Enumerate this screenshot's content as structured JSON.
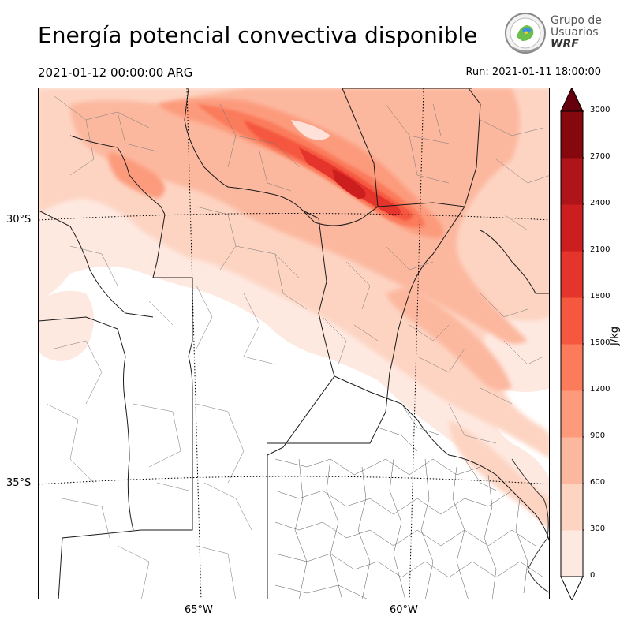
{
  "header": {
    "title": "Energía potencial convectiva disponible",
    "valid_time": "2021-01-12 00:00:00 ARG",
    "run_time": "Run: 2021-01-11 18:00:00"
  },
  "logo": {
    "line1": "Grupo de",
    "line2": "Usuarios",
    "line3": "WRF"
  },
  "map": {
    "lat_labels": [
      "30°S",
      "35°S"
    ],
    "lon_labels": [
      "65°W",
      "60°W"
    ]
  },
  "colorbar": {
    "unit_label": "J/kg",
    "ticks": [
      "0",
      "300",
      "600",
      "900",
      "1200",
      "1500",
      "1800",
      "2100",
      "2400",
      "2700",
      "3000"
    ],
    "colors": [
      "#fee9e1",
      "#fdd4c2",
      "#fcb89f",
      "#fc9a7b",
      "#fb7b5b",
      "#f5573f",
      "#e5342b",
      "#cc1d1f",
      "#ae1419",
      "#85080f"
    ],
    "extend_color": "#67000d"
  }
}
